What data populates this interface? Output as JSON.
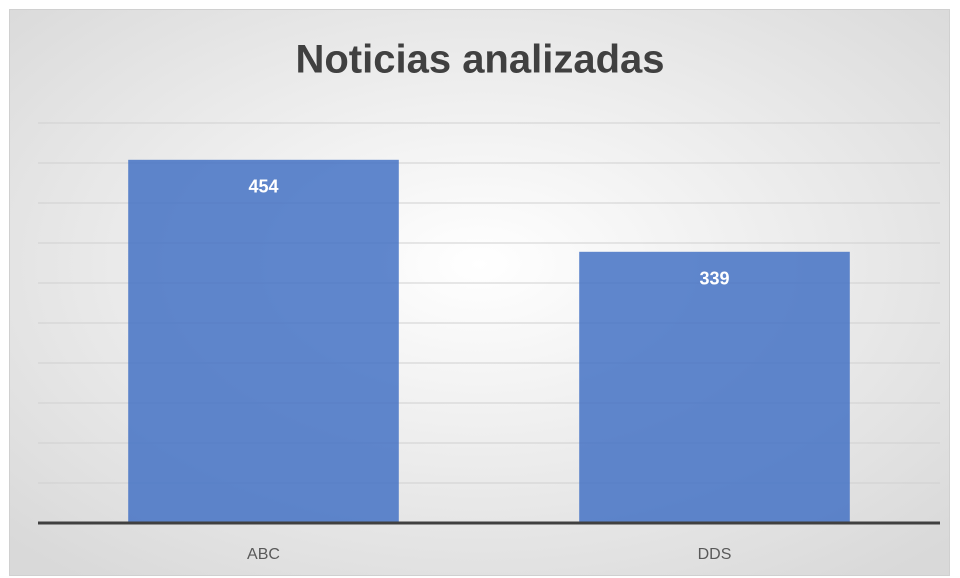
{
  "chart_data": {
    "type": "bar",
    "title": "Noticias analizadas",
    "categories": [
      "ABC",
      "DDS"
    ],
    "values": [
      454,
      339
    ],
    "color": "#4472c4",
    "ylim": [
      0,
      500
    ],
    "yticks": [
      0,
      50,
      100,
      150,
      200,
      250,
      300,
      350,
      400,
      450,
      500
    ],
    "grid": true
  }
}
